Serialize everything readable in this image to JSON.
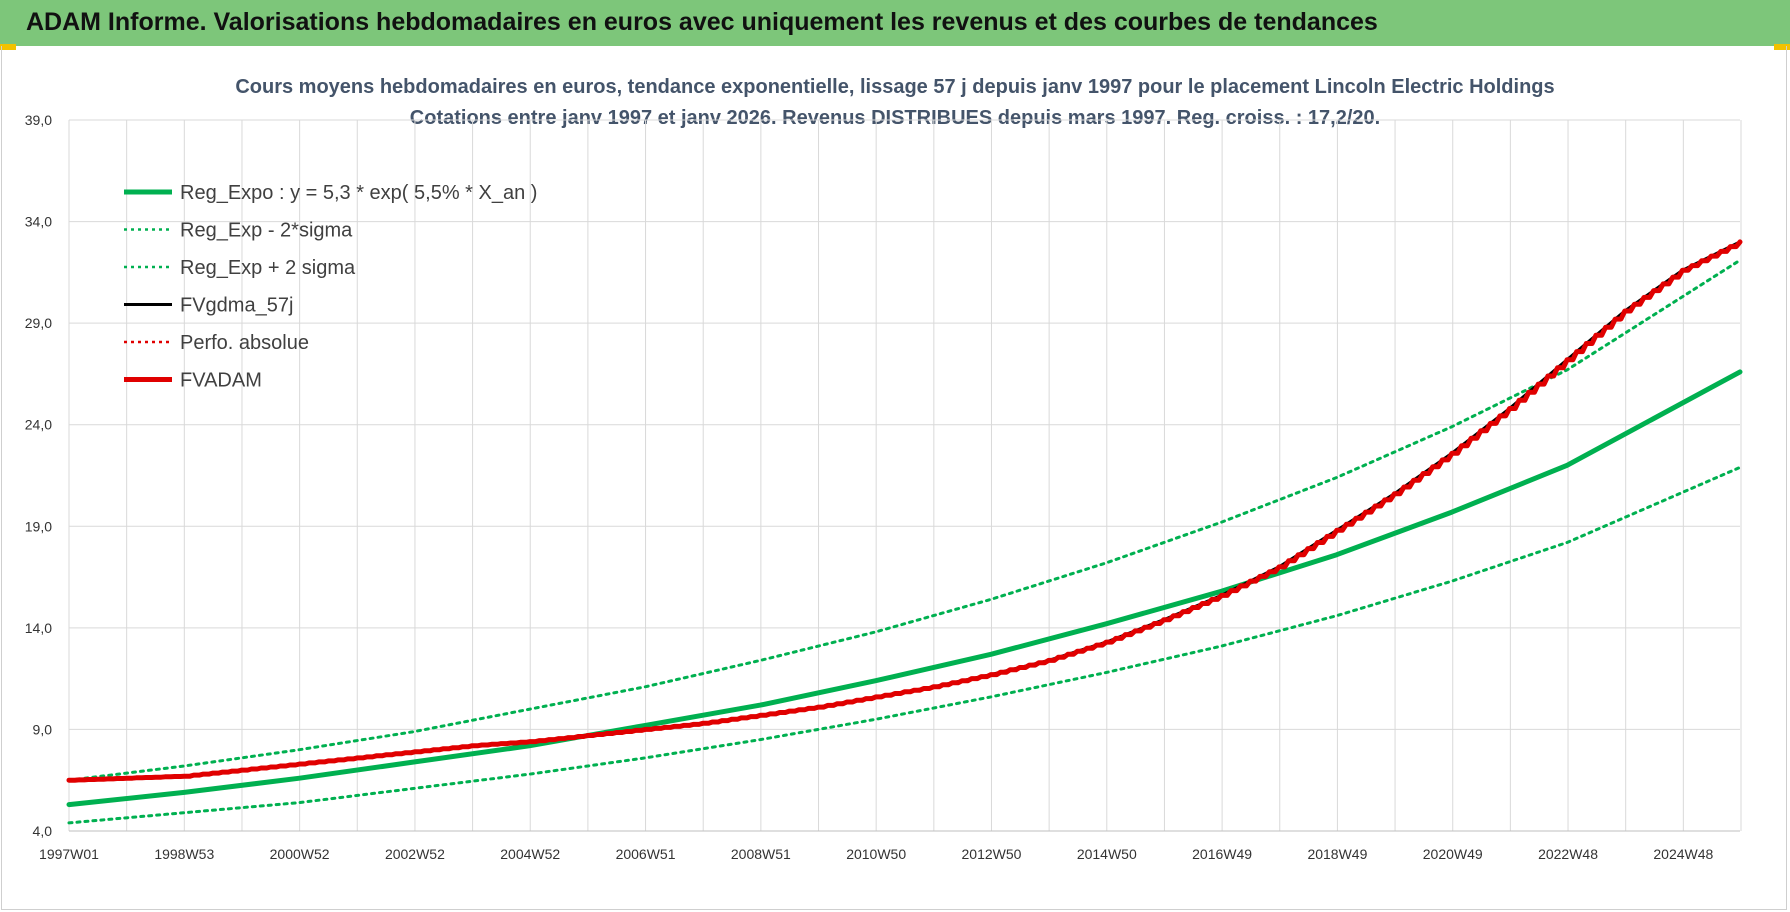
{
  "banner": {
    "title": "ADAM Informe. Valorisations hebdomadaires en euros avec uniquement les revenus et des courbes de tendances"
  },
  "colors": {
    "banner": "#7dc67a",
    "green": "#00b050",
    "red": "#e00000",
    "black": "#000000"
  },
  "chart_data": {
    "type": "line",
    "title": "Cours moyens hebdomadaires en euros, tendance exponentielle, lissage 57 j depuis janv 1997 pour le placement Lincoln Electric Holdings",
    "subtitle": "Cotations entre janv 1997 et janv 2026. Revenus DISTRIBUES depuis mars 1997. Reg. croiss. : 17,2/20.",
    "xlabel": "",
    "ylabel": "",
    "ylim": [
      4.0,
      39.0
    ],
    "yticks": [
      "4,0",
      "9,0",
      "14,0",
      "19,0",
      "24,0",
      "29,0",
      "34,0",
      "39,0"
    ],
    "xticks": [
      "1997W01",
      "1998W53",
      "2000W52",
      "2002W52",
      "2004W52",
      "2006W51",
      "2008W51",
      "2010W50",
      "2012W50",
      "2014W50",
      "2016W49",
      "2018W49",
      "2020W49",
      "2022W48",
      "2024W48"
    ],
    "xrange_years": [
      1997.0,
      2026.0
    ],
    "grid": true,
    "legend_position": "top-left",
    "series": [
      {
        "name": "Reg_Expo : y = 5,3 * exp( 5,5% *  X_an )",
        "color": "#00b050",
        "style": "solid",
        "width": 5,
        "x": [
          1997,
          1999,
          2001,
          2003,
          2005,
          2007,
          2009,
          2011,
          2013,
          2015,
          2017,
          2019,
          2021,
          2023,
          2026
        ],
        "y": [
          5.3,
          5.9,
          6.6,
          7.4,
          8.2,
          9.2,
          10.2,
          11.4,
          12.7,
          14.2,
          15.8,
          17.6,
          19.7,
          22.0,
          26.6
        ]
      },
      {
        "name": "Reg_Exp - 2*sigma",
        "color": "#00b050",
        "style": "dotted",
        "width": 3,
        "x": [
          1997,
          1999,
          2001,
          2003,
          2005,
          2007,
          2009,
          2011,
          2013,
          2015,
          2017,
          2019,
          2021,
          2023,
          2026
        ],
        "y": [
          4.4,
          4.9,
          5.4,
          6.1,
          6.8,
          7.6,
          8.5,
          9.5,
          10.6,
          11.8,
          13.1,
          14.6,
          16.3,
          18.2,
          21.9
        ]
      },
      {
        "name": "Reg_Exp + 2 sigma",
        "color": "#00b050",
        "style": "dotted",
        "width": 3,
        "x": [
          1997,
          1999,
          2001,
          2003,
          2005,
          2007,
          2009,
          2011,
          2013,
          2015,
          2017,
          2019,
          2021,
          2023,
          2026
        ],
        "y": [
          6.5,
          7.2,
          8.0,
          8.9,
          10.0,
          11.1,
          12.4,
          13.8,
          15.4,
          17.2,
          19.2,
          21.4,
          23.9,
          26.7,
          32.1
        ]
      },
      {
        "name": "FVgdma_57j",
        "color": "#000000",
        "style": "solid",
        "width": 3,
        "x": [
          1997,
          1998,
          1999,
          2000,
          2001,
          2002,
          2003,
          2004,
          2005,
          2006,
          2007,
          2008,
          2009,
          2010,
          2011,
          2012,
          2013,
          2014,
          2015,
          2016,
          2017,
          2018,
          2019,
          2020,
          2021,
          2022,
          2023,
          2024,
          2025,
          2026
        ],
        "y": [
          6.5,
          6.6,
          6.7,
          7.0,
          7.3,
          7.6,
          7.9,
          8.2,
          8.4,
          8.7,
          9.0,
          9.3,
          9.7,
          10.1,
          10.6,
          11.1,
          11.7,
          12.4,
          13.3,
          14.4,
          15.6,
          17.0,
          18.8,
          20.6,
          22.6,
          24.8,
          27.2,
          29.6,
          31.6,
          33.0
        ]
      },
      {
        "name": "Perfo. absolue",
        "color": "#e00000",
        "style": "dotted",
        "width": 2,
        "x": [],
        "y": []
      },
      {
        "name": "FVADAM",
        "color": "#e00000",
        "style": "solid",
        "width": 5,
        "x": [
          1997,
          1998,
          1999,
          2000,
          2001,
          2002,
          2003,
          2004,
          2005,
          2006,
          2007,
          2008,
          2009,
          2010,
          2011,
          2012,
          2013,
          2014,
          2015,
          2016,
          2017,
          2018,
          2019,
          2020,
          2021,
          2022,
          2023,
          2024,
          2025,
          2026
        ],
        "y": [
          6.5,
          6.6,
          6.7,
          7.0,
          7.3,
          7.6,
          7.9,
          8.2,
          8.4,
          8.7,
          9.0,
          9.3,
          9.7,
          10.1,
          10.6,
          11.1,
          11.7,
          12.4,
          13.3,
          14.4,
          15.6,
          17.0,
          18.8,
          20.6,
          22.6,
          24.8,
          27.2,
          29.6,
          31.6,
          33.0
        ]
      }
    ]
  }
}
